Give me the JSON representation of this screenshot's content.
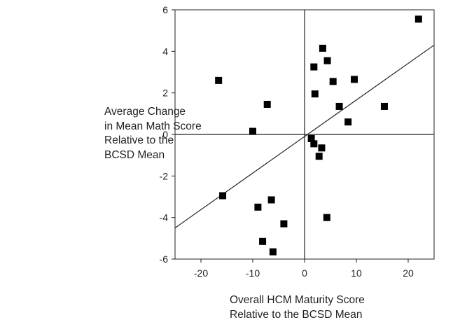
{
  "chart_data": {
    "type": "scatter",
    "title": "",
    "xlabel_lines": [
      "Overall HCM Maturity Score",
      "Relative to the BCSD Mean"
    ],
    "ylabel_lines": [
      "Average Change",
      "in Mean Math Score",
      "Relative to the",
      "BCSD Mean"
    ],
    "xlim": [
      -25,
      25
    ],
    "ylim": [
      -6,
      6
    ],
    "x_ticks": [
      -20,
      -10,
      0,
      10,
      20
    ],
    "y_ticks": [
      -6,
      -4,
      -2,
      0,
      2,
      4,
      6
    ],
    "x_tick_labels": [
      "-20",
      "-10",
      "0",
      "10",
      "20"
    ],
    "y_tick_labels": [
      "-6",
      "-4",
      "-2",
      "0",
      "2",
      "4",
      "6"
    ],
    "grid": false,
    "reference_lines": {
      "x": 0,
      "y": 0
    },
    "trend_line": {
      "x": [
        -25,
        25
      ],
      "y": [
        -4.5,
        4.3
      ]
    },
    "points": [
      {
        "x": 22.0,
        "y": 5.55
      },
      {
        "x": 3.5,
        "y": 4.15
      },
      {
        "x": 4.4,
        "y": 3.55
      },
      {
        "x": 1.8,
        "y": 3.25
      },
      {
        "x": 9.6,
        "y": 2.65
      },
      {
        "x": -16.6,
        "y": 2.6
      },
      {
        "x": 5.5,
        "y": 2.55
      },
      {
        "x": 2.0,
        "y": 1.95
      },
      {
        "x": -7.2,
        "y": 1.45
      },
      {
        "x": 6.7,
        "y": 1.35
      },
      {
        "x": 15.4,
        "y": 1.35
      },
      {
        "x": 8.4,
        "y": 0.6
      },
      {
        "x": -10.0,
        "y": 0.15
      },
      {
        "x": 1.3,
        "y": -0.2
      },
      {
        "x": 1.8,
        "y": -0.45
      },
      {
        "x": 3.3,
        "y": -0.65
      },
      {
        "x": 2.8,
        "y": -1.05
      },
      {
        "x": -15.8,
        "y": -2.95
      },
      {
        "x": -6.4,
        "y": -3.15
      },
      {
        "x": -9.0,
        "y": -3.5
      },
      {
        "x": 4.3,
        "y": -4.0
      },
      {
        "x": -4.0,
        "y": -4.3
      },
      {
        "x": -8.1,
        "y": -5.15
      },
      {
        "x": -6.1,
        "y": -5.65
      }
    ]
  }
}
